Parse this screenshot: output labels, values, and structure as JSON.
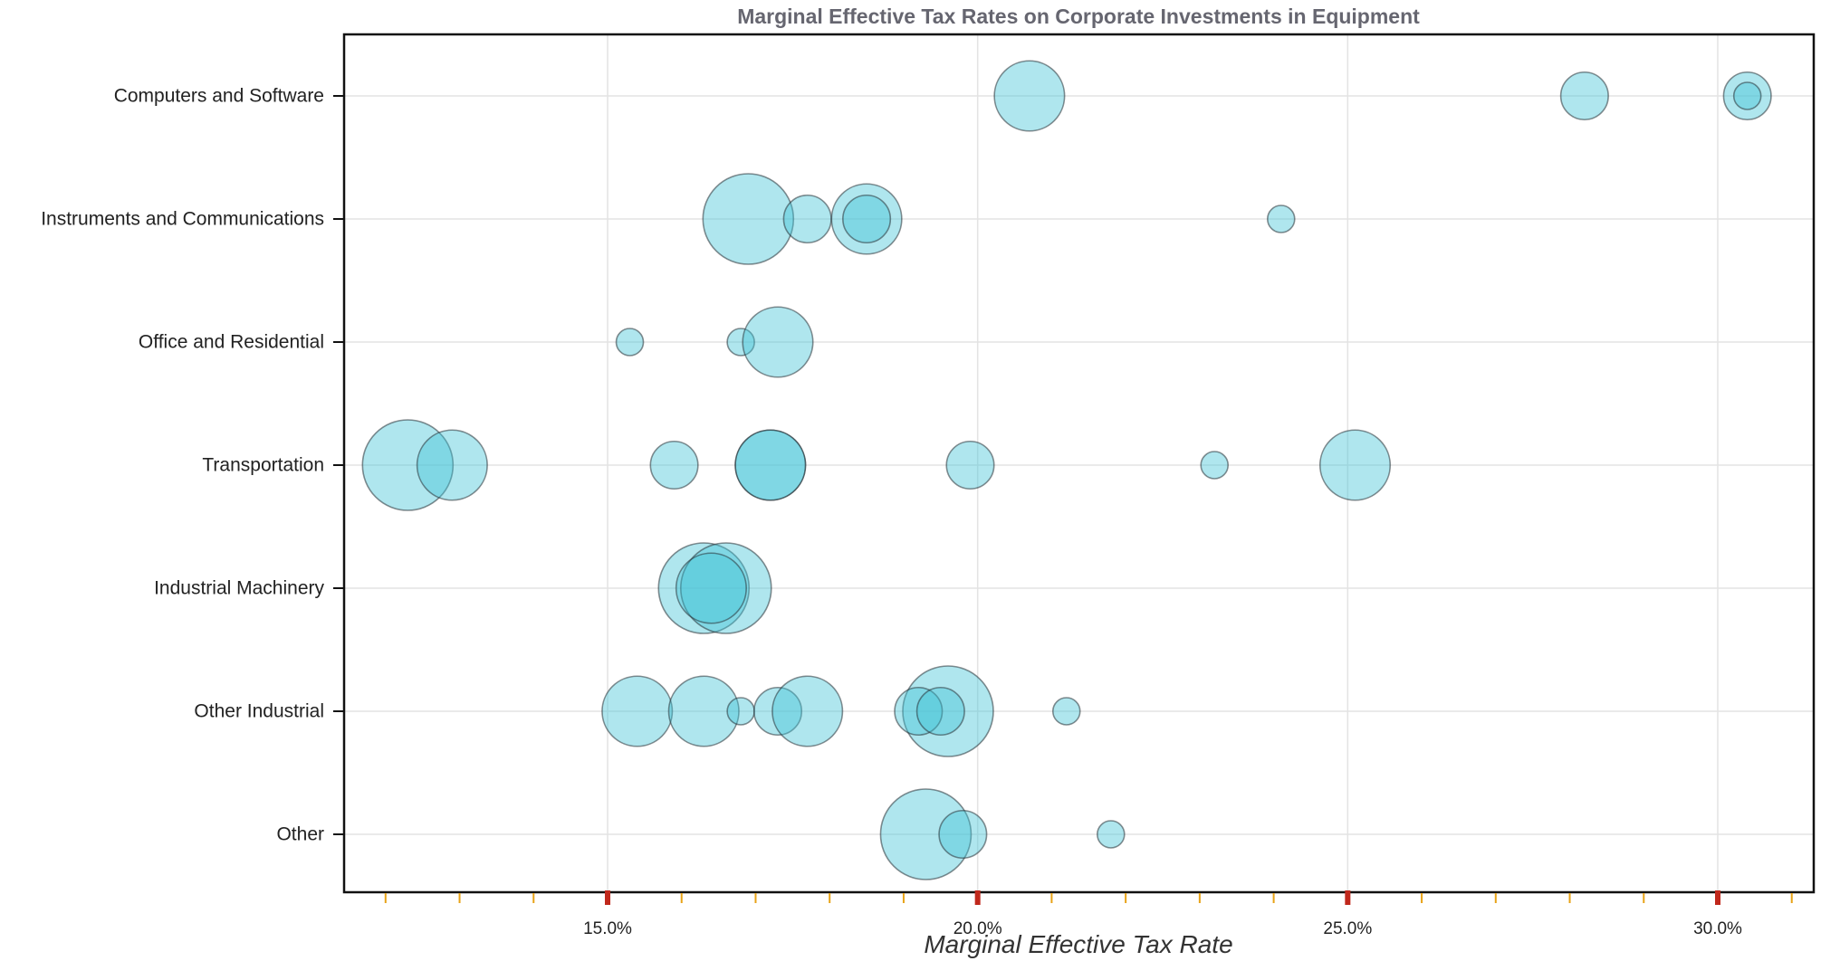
{
  "chart_data": {
    "type": "scatter",
    "title": "Marginal Effective Tax Rates on Corporate Investments in Equipment",
    "xlabel": "Marginal Effective Tax Rate",
    "ylabel": "",
    "x_unit": "percent",
    "xlim": [
      11.7,
      31.5
    ],
    "x_ticks": [
      15,
      20,
      25,
      30
    ],
    "x_tick_labels": [
      "15.0%",
      "20.0%",
      "25.0%",
      "30.0%"
    ],
    "x_minor_ticks": [
      12,
      13,
      14,
      16,
      17,
      18,
      19,
      21,
      22,
      23,
      24,
      26,
      27,
      28,
      29,
      31
    ],
    "grid": true,
    "categories": [
      "Computers and Software",
      "Instruments and Communications",
      "Office and Residential",
      "Transportation",
      "Industrial Machinery",
      "Other Industrial",
      "Other"
    ],
    "colors": {
      "bubble_fill": "#40c4d6",
      "bubble_stroke": "#283237",
      "major_tick": "#c0281c",
      "minor_tick": "#e8a317",
      "title": "#666670"
    },
    "points": [
      {
        "category": "Computers and Software",
        "x": 20.7,
        "size": 31
      },
      {
        "category": "Computers and Software",
        "x": 28.2,
        "size": 21
      },
      {
        "category": "Computers and Software",
        "x": 30.4,
        "size": 21
      },
      {
        "category": "Computers and Software",
        "x": 30.4,
        "size": 12
      },
      {
        "category": "Instruments and Communications",
        "x": 16.9,
        "size": 40
      },
      {
        "category": "Instruments and Communications",
        "x": 17.7,
        "size": 21
      },
      {
        "category": "Instruments and Communications",
        "x": 18.5,
        "size": 31
      },
      {
        "category": "Instruments and Communications",
        "x": 18.5,
        "size": 21
      },
      {
        "category": "Instruments and Communications",
        "x": 24.1,
        "size": 12
      },
      {
        "category": "Office and Residential",
        "x": 15.3,
        "size": 12
      },
      {
        "category": "Office and Residential",
        "x": 16.8,
        "size": 12
      },
      {
        "category": "Office and Residential",
        "x": 17.3,
        "size": 31
      },
      {
        "category": "Transportation",
        "x": 12.3,
        "size": 40
      },
      {
        "category": "Transportation",
        "x": 12.9,
        "size": 31
      },
      {
        "category": "Transportation",
        "x": 15.9,
        "size": 21
      },
      {
        "category": "Transportation",
        "x": 17.2,
        "size": 31
      },
      {
        "category": "Transportation",
        "x": 17.2,
        "size": 31
      },
      {
        "category": "Transportation",
        "x": 19.9,
        "size": 21
      },
      {
        "category": "Transportation",
        "x": 23.2,
        "size": 12
      },
      {
        "category": "Transportation",
        "x": 25.1,
        "size": 31
      },
      {
        "category": "Industrial Machinery",
        "x": 16.3,
        "size": 40
      },
      {
        "category": "Industrial Machinery",
        "x": 16.6,
        "size": 40
      },
      {
        "category": "Industrial Machinery",
        "x": 16.4,
        "size": 31
      },
      {
        "category": "Other Industrial",
        "x": 15.4,
        "size": 31
      },
      {
        "category": "Other Industrial",
        "x": 16.3,
        "size": 31
      },
      {
        "category": "Other Industrial",
        "x": 16.8,
        "size": 12
      },
      {
        "category": "Other Industrial",
        "x": 17.3,
        "size": 21
      },
      {
        "category": "Other Industrial",
        "x": 17.7,
        "size": 31
      },
      {
        "category": "Other Industrial",
        "x": 19.6,
        "size": 40
      },
      {
        "category": "Other Industrial",
        "x": 19.2,
        "size": 21
      },
      {
        "category": "Other Industrial",
        "x": 19.5,
        "size": 21
      },
      {
        "category": "Other Industrial",
        "x": 21.2,
        "size": 12
      },
      {
        "category": "Other",
        "x": 19.3,
        "size": 40
      },
      {
        "category": "Other",
        "x": 19.8,
        "size": 21
      },
      {
        "category": "Other",
        "x": 21.8,
        "size": 12
      }
    ]
  }
}
